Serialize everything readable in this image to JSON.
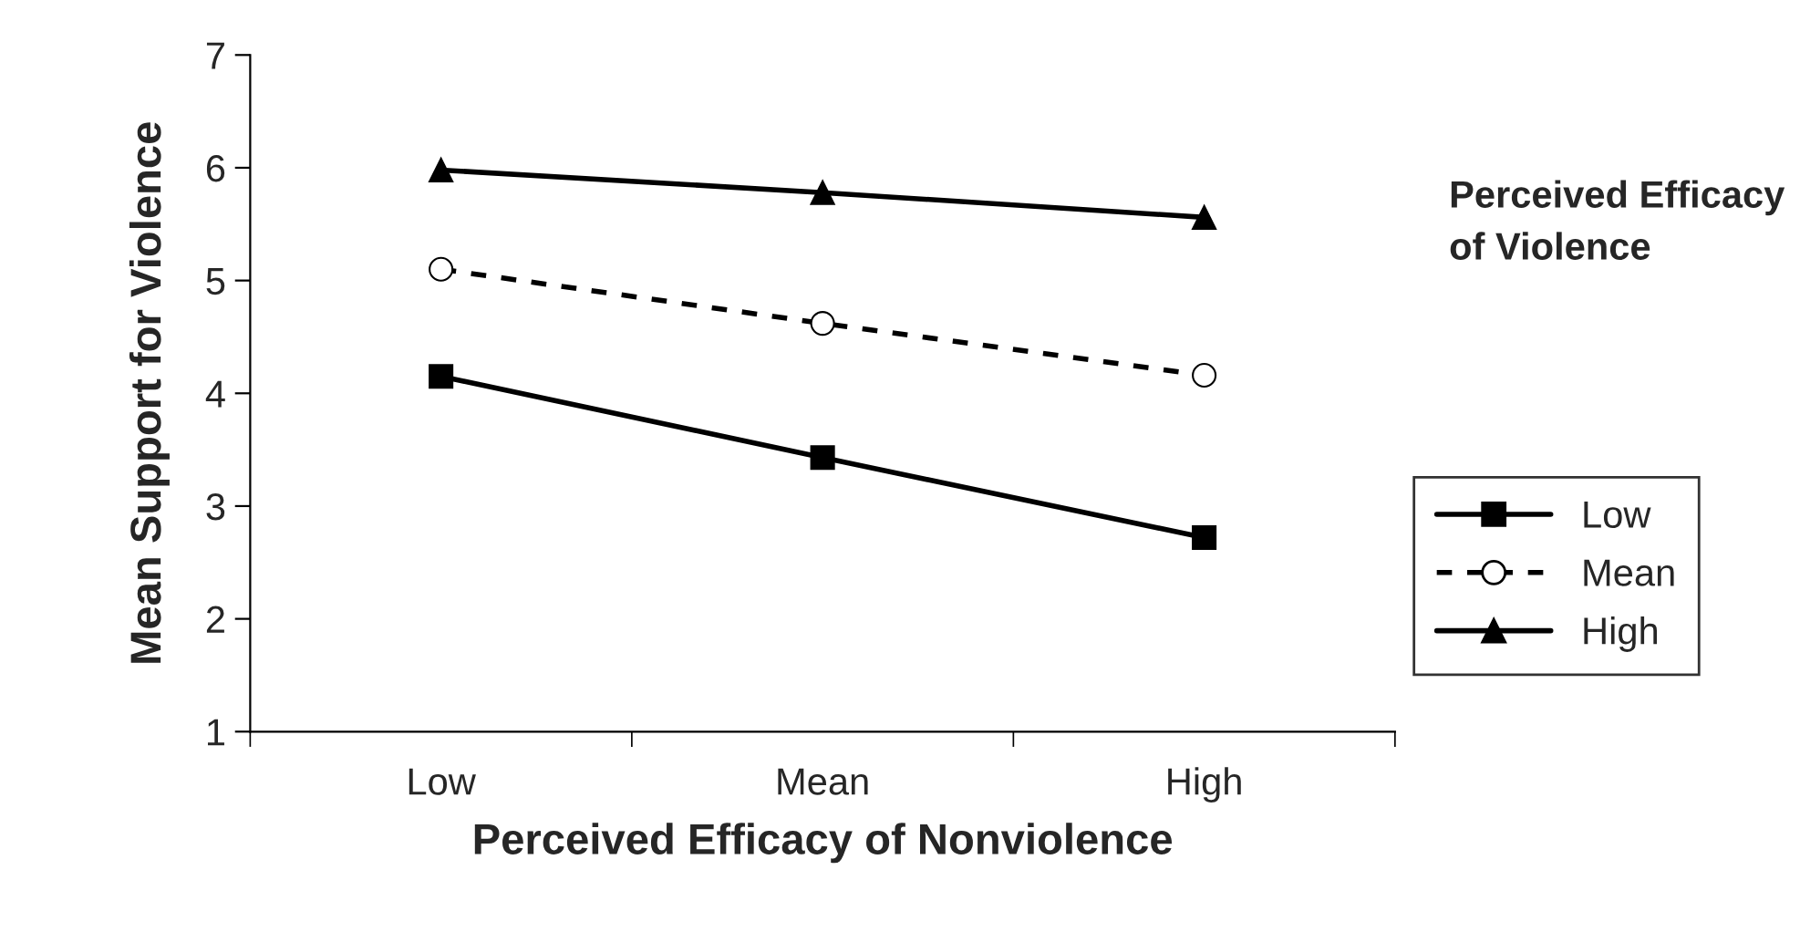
{
  "chart_data": {
    "type": "line",
    "xlabel": "Perceived Efficacy of Nonviolence",
    "ylabel": "Mean Support for Violence",
    "legend_title": "Perceived Efficacy of Violence",
    "categories": [
      "Low",
      "Mean",
      "High"
    ],
    "series": [
      {
        "name": "Low",
        "color": "#000000",
        "marker": "square",
        "line_style": "solid",
        "values": [
          4.15,
          3.43,
          2.72
        ]
      },
      {
        "name": "Mean",
        "color": "#000000",
        "marker": "circle",
        "line_style": "dashed",
        "values": [
          5.1,
          4.62,
          4.16
        ]
      },
      {
        "name": "High",
        "color": "#000000",
        "marker": "triangle",
        "line_style": "solid",
        "values": [
          5.98,
          5.78,
          5.56
        ]
      }
    ],
    "ylim": [
      1,
      7
    ],
    "yticks": [
      1,
      2,
      3,
      4,
      5,
      6,
      7
    ],
    "grid": false,
    "legend": "right"
  }
}
